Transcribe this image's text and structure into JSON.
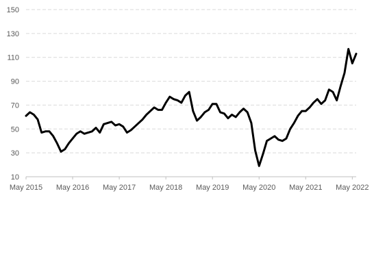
{
  "chart_data": {
    "type": "line",
    "title": "",
    "xlabel": "",
    "ylabel": "",
    "x_ticks": [
      "May 2015",
      "May 2016",
      "May 2017",
      "May 2018",
      "May 2019",
      "May 2020",
      "May 2021",
      "May 2022"
    ],
    "y_ticks": [
      10,
      30,
      50,
      70,
      90,
      110,
      130,
      150
    ],
    "ylim": [
      10,
      150
    ],
    "grid": {
      "horizontal": true,
      "style": "dashed"
    },
    "legend": "none",
    "colors": {
      "line": "#000000",
      "grid": "#d9d9d9",
      "axis": "#bfbfbf",
      "text": "#595959"
    },
    "series": [
      {
        "values": [
          61,
          64,
          62,
          58,
          47,
          48,
          48,
          44,
          38,
          31,
          33,
          38,
          42,
          46,
          48,
          46,
          47,
          48,
          51,
          47,
          54,
          55,
          56,
          53,
          54,
          52,
          47,
          49,
          52,
          55,
          58,
          62,
          65,
          68,
          66,
          66,
          72,
          77,
          75,
          74,
          72,
          78,
          81,
          65,
          57,
          60,
          64,
          66,
          71,
          71,
          64,
          63,
          59,
          62,
          60,
          64,
          67,
          64,
          55,
          32,
          19,
          29,
          40,
          42,
          44,
          41,
          40,
          42,
          50,
          55,
          61,
          65,
          65,
          68,
          72,
          75,
          71,
          74,
          83,
          81,
          74,
          86,
          97,
          117,
          105,
          113
        ]
      }
    ]
  }
}
